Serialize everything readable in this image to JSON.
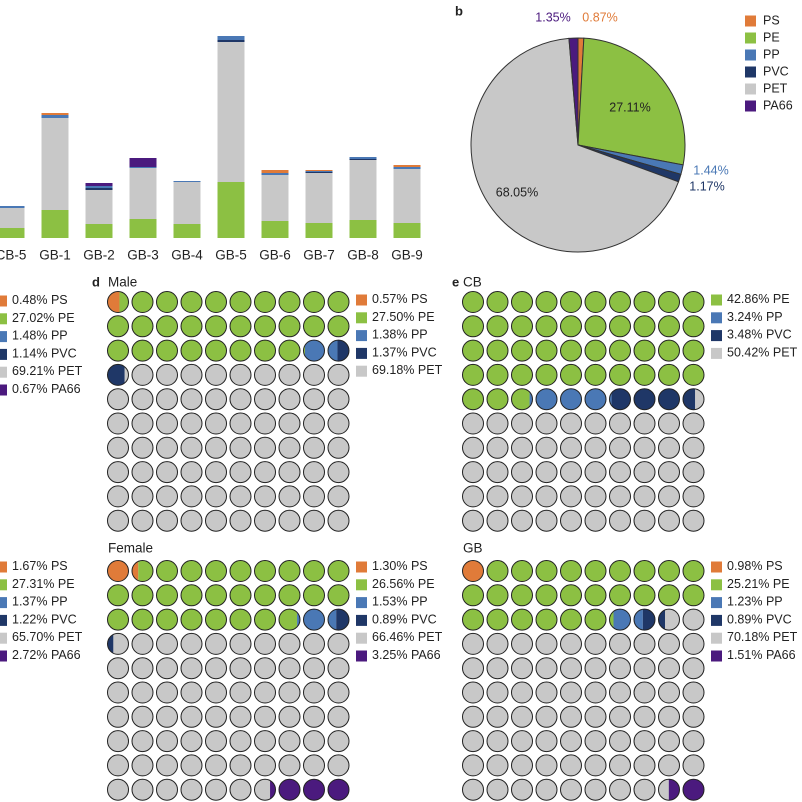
{
  "chart_data": [
    {
      "type": "bar",
      "categories": [
        "CB-5",
        "GB-1",
        "GB-2",
        "GB-3",
        "GB-4",
        "GB-5",
        "GB-6",
        "GB-7",
        "GB-8",
        "GB-9"
      ],
      "series": [
        {
          "name": "PE",
          "color": "#8cc043",
          "values": [
            10,
            28,
            14,
            19,
            14,
            56,
            17,
            15,
            18,
            15
          ]
        },
        {
          "name": "PET",
          "color": "#c8c8c8",
          "values": [
            20,
            92,
            34,
            51,
            42,
            140,
            46,
            50,
            60,
            54
          ]
        },
        {
          "name": "PVC",
          "color": "#1f3767",
          "values": [
            0,
            0,
            2,
            0,
            0,
            2,
            0,
            1,
            1,
            0
          ]
        },
        {
          "name": "PP",
          "color": "#4a78b5",
          "values": [
            2,
            3,
            2,
            1,
            1,
            4,
            2,
            1,
            2,
            2
          ]
        },
        {
          "name": "PS",
          "color": "#e07b39",
          "values": [
            0,
            2,
            0,
            0,
            0,
            0,
            3,
            1,
            0,
            2
          ]
        },
        {
          "name": "PA66",
          "color": "#4b1a7e",
          "values": [
            0,
            0,
            3,
            9,
            0,
            0,
            0,
            0,
            0,
            0
          ]
        }
      ],
      "ylim": [
        0,
        210
      ]
    },
    {
      "type": "pie",
      "panel": "b",
      "categories": [
        "PS",
        "PE",
        "PP",
        "PVC",
        "PET",
        "PA66"
      ],
      "values": [
        0.87,
        27.11,
        1.44,
        1.17,
        68.05,
        1.35
      ],
      "value_labels": [
        "0.87%",
        "27.11%",
        "1.44%",
        "1.17%",
        "68.05%",
        "1.35%"
      ],
      "colors": [
        "#e07b39",
        "#8cc043",
        "#4a78b5",
        "#1f3767",
        "#c8c8c8",
        "#4b1a7e"
      ]
    },
    {
      "type": "waffle",
      "categories": [
        "PS",
        "PE",
        "PP",
        "PVC",
        "PET",
        "PA66"
      ],
      "values": [
        0.48,
        27.02,
        1.48,
        1.14,
        69.21,
        0.67
      ],
      "value_labels": [
        "0.48%",
        "27.02%",
        "1.48%",
        "1.14%",
        "69.21%",
        "0.67%"
      ],
      "colors": [
        "#e07b39",
        "#8cc043",
        "#4a78b5",
        "#1f3767",
        "#c8c8c8",
        "#4b1a7e"
      ]
    },
    {
      "type": "waffle",
      "panel": "d",
      "title": "Male",
      "categories": [
        "PS",
        "PE",
        "PP",
        "PVC",
        "PET"
      ],
      "values": [
        0.57,
        27.5,
        1.38,
        1.37,
        69.18
      ],
      "value_labels": [
        "0.57%",
        "27.50%",
        "1.38%",
        "1.37%",
        "69.18%"
      ],
      "colors": [
        "#e07b39",
        "#8cc043",
        "#4a78b5",
        "#1f3767",
        "#c8c8c8"
      ]
    },
    {
      "type": "waffle",
      "panel": "e",
      "title": "CB",
      "categories": [
        "PE",
        "PP",
        "PVC",
        "PET"
      ],
      "values": [
        42.86,
        3.24,
        3.48,
        50.42
      ],
      "value_labels": [
        "42.86%",
        "3.24%",
        "3.48%",
        "50.42%"
      ],
      "colors": [
        "#8cc043",
        "#4a78b5",
        "#1f3767",
        "#c8c8c8"
      ]
    },
    {
      "type": "waffle",
      "categories": [
        "PS",
        "PE",
        "PP",
        "PVC",
        "PET",
        "PA66"
      ],
      "values": [
        1.67,
        27.31,
        1.37,
        1.22,
        65.7,
        2.72
      ],
      "value_labels": [
        "1.67%",
        "27.31%",
        "1.37%",
        "1.22%",
        "65.70%",
        "2.72%"
      ],
      "colors": [
        "#e07b39",
        "#8cc043",
        "#4a78b5",
        "#1f3767",
        "#c8c8c8",
        "#4b1a7e"
      ]
    },
    {
      "type": "waffle",
      "title": "Female",
      "categories": [
        "PS",
        "PE",
        "PP",
        "PVC",
        "PET",
        "PA66"
      ],
      "values": [
        1.3,
        26.56,
        1.53,
        0.89,
        66.46,
        3.25
      ],
      "value_labels": [
        "1.30%",
        "26.56%",
        "1.53%",
        "0.89%",
        "66.46%",
        "3.25%"
      ],
      "colors": [
        "#e07b39",
        "#8cc043",
        "#4a78b5",
        "#1f3767",
        "#c8c8c8",
        "#4b1a7e"
      ]
    },
    {
      "type": "waffle",
      "title": "GB",
      "categories": [
        "PS",
        "PE",
        "PP",
        "PVC",
        "PET",
        "PA66"
      ],
      "values": [
        0.98,
        25.21,
        1.23,
        0.89,
        70.18,
        1.51
      ],
      "value_labels": [
        "0.98%",
        "25.21%",
        "1.23%",
        "0.89%",
        "70.18%",
        "1.51%"
      ],
      "colors": [
        "#e07b39",
        "#8cc043",
        "#4a78b5",
        "#1f3767",
        "#c8c8c8",
        "#4b1a7e"
      ]
    }
  ]
}
